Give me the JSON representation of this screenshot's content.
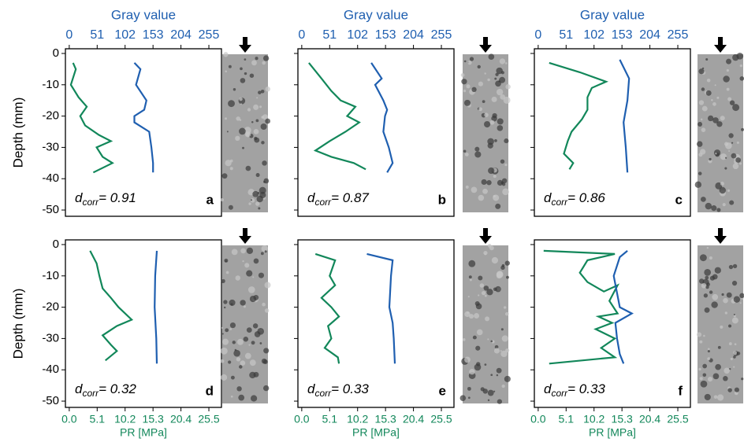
{
  "chart_data": [
    {
      "type": "line",
      "label": "a",
      "annotation": [
        "d",
        "corr",
        "= 0.91"
      ],
      "x2label": "Gray value",
      "ylabel": "Depth (mm)",
      "xlim": [
        -0.7,
        27.8
      ],
      "x2lim": [
        -7,
        278
      ],
      "ylim": [
        -52,
        1.5
      ],
      "x2ticks": [
        0,
        51,
        102,
        153,
        204,
        255
      ],
      "yticks": [
        0,
        -10,
        -20,
        -30,
        -40,
        -50
      ],
      "series": [
        {
          "color": "#12875a",
          "axis": "x",
          "values": [
            0.7,
            1.2,
            0.3,
            1.7,
            3.2,
            2.0,
            2.9,
            5.4,
            7.6,
            5.0,
            6.1,
            7.9,
            4.4
          ],
          "depth": [
            -3,
            -5,
            -10,
            -14,
            -17,
            -20,
            -23,
            -26,
            -28,
            -30,
            -33,
            -35,
            -38
          ]
        },
        {
          "color": "#1f5fb0",
          "axis": "x2",
          "values": [
            119,
            130,
            122,
            141,
            137,
            119,
            119,
            146,
            150,
            153,
            153
          ],
          "depth": [
            -3,
            -5,
            -10,
            -15,
            -18,
            -20,
            -22,
            -25,
            -30,
            -35,
            -38
          ]
        }
      ]
    },
    {
      "type": "line",
      "label": "b",
      "annotation": [
        "d",
        "corr",
        "= 0.87"
      ],
      "x2label": "Gray value",
      "xlim": [
        -0.7,
        27.8
      ],
      "x2lim": [
        -7,
        278
      ],
      "ylim": [
        -52,
        1.5
      ],
      "x2ticks": [
        0,
        51,
        102,
        153,
        204,
        255
      ],
      "yticks": [
        0,
        -10,
        -20,
        -30,
        -40,
        -50
      ],
      "series": [
        {
          "color": "#12875a",
          "axis": "x",
          "values": [
            1.3,
            3.6,
            5.4,
            7.1,
            9.8,
            8.3,
            10.5,
            8.0,
            5.1,
            2.5,
            5.4,
            9.5,
            11.7
          ],
          "depth": [
            -3,
            -8,
            -12,
            -15,
            -17,
            -20,
            -22,
            -25,
            -28,
            -31,
            -33,
            -35,
            -37
          ]
        },
        {
          "color": "#1f5fb0",
          "axis": "x2",
          "values": [
            127,
            146,
            134,
            149,
            156,
            152,
            149,
            159,
            166,
            156
          ],
          "depth": [
            -3,
            -8,
            -10,
            -15,
            -18,
            -20,
            -25,
            -30,
            -35,
            -38
          ]
        }
      ]
    },
    {
      "type": "line",
      "label": "c",
      "annotation": [
        "d",
        "corr",
        "= 0.86"
      ],
      "x2label": "Gray value",
      "xlim": [
        -0.7,
        27.8
      ],
      "x2lim": [
        -7,
        278
      ],
      "ylim": [
        -52,
        1.5
      ],
      "x2ticks": [
        0,
        51,
        102,
        153,
        204,
        255
      ],
      "yticks": [
        0,
        -10,
        -20,
        -30,
        -40,
        -50
      ],
      "series": [
        {
          "color": "#12875a",
          "axis": "x",
          "values": [
            2.0,
            7.6,
            12.4,
            9.8,
            9.0,
            9.0,
            8.0,
            6.1,
            5.4,
            4.7,
            6.4,
            5.7
          ],
          "depth": [
            -3,
            -6,
            -9,
            -11,
            -14,
            -18,
            -21,
            -25,
            -28,
            -32,
            -35,
            -37
          ]
        },
        {
          "color": "#1f5fb0",
          "axis": "x2",
          "values": [
            149,
            166,
            163,
            156,
            160,
            163
          ],
          "depth": [
            -2,
            -8,
            -15,
            -22,
            -30,
            -38
          ]
        }
      ]
    },
    {
      "type": "line",
      "label": "d",
      "annotation": [
        "d",
        "corr",
        "= 0.32"
      ],
      "xlabel": "PR [MPa]",
      "ylabel": "Depth (mm)",
      "xlim": [
        -0.7,
        27.8
      ],
      "x2lim": [
        -7,
        278
      ],
      "ylim": [
        -52,
        1.5
      ],
      "xticks": [
        {
          "value": 0,
          "label": "0.0"
        },
        5.1,
        10.2,
        15.3,
        20.4,
        25.5
      ],
      "yticks": [
        0,
        -10,
        -20,
        -30,
        -40,
        -50
      ],
      "series": [
        {
          "color": "#12875a",
          "axis": "x",
          "values": [
            3.8,
            5.0,
            5.5,
            6.1,
            7.6,
            9.0,
            11.4,
            8.7,
            6.1,
            7.6,
            8.7,
            7.3,
            6.6
          ],
          "depth": [
            -2,
            -6,
            -10,
            -14,
            -17,
            -20,
            -24,
            -26,
            -29,
            -32,
            -34,
            -36,
            -37
          ]
        },
        {
          "color": "#1f5fb0",
          "axis": "x2",
          "values": [
            160,
            157,
            156,
            159,
            160
          ],
          "depth": [
            -2,
            -10,
            -20,
            -30,
            -38
          ]
        }
      ]
    },
    {
      "type": "line",
      "label": "e",
      "annotation": [
        "d",
        "corr",
        "= 0.33"
      ],
      "xlabel": "PR [MPa]",
      "xlim": [
        -0.7,
        27.8
      ],
      "x2lim": [
        -7,
        278
      ],
      "ylim": [
        -52,
        1.5
      ],
      "xticks": [
        {
          "value": 0,
          "label": "0.0"
        },
        5.1,
        10.2,
        15.3,
        20.4,
        25.5
      ],
      "yticks": [
        0,
        -10,
        -20,
        -30,
        -40,
        -50
      ],
      "series": [
        {
          "color": "#12875a",
          "axis": "x",
          "values": [
            2.5,
            6.1,
            5.1,
            6.1,
            3.6,
            5.4,
            6.8,
            4.8,
            5.4,
            4.2,
            6.6,
            6.8
          ],
          "depth": [
            -3,
            -5,
            -10,
            -13,
            -17,
            -20,
            -23,
            -26,
            -30,
            -33,
            -36,
            -38
          ]
        },
        {
          "color": "#1f5fb0",
          "axis": "x2",
          "values": [
            119,
            166,
            163,
            160,
            166,
            168,
            170
          ],
          "depth": [
            -3,
            -5,
            -10,
            -20,
            -25,
            -30,
            -38
          ]
        }
      ]
    },
    {
      "type": "line",
      "label": "f",
      "annotation": [
        "d",
        "corr",
        "= 0.33"
      ],
      "xlabel": "PR [MPa]",
      "xlim": [
        -0.7,
        27.8
      ],
      "x2lim": [
        -7,
        278
      ],
      "ylim": [
        -52,
        1.5
      ],
      "xticks": [
        {
          "value": 0,
          "label": "0.0"
        },
        5.1,
        10.2,
        15.3,
        20.4,
        25.5
      ],
      "yticks": [
        0,
        -10,
        -20,
        -30,
        -40,
        -50
      ],
      "series": [
        {
          "color": "#12875a",
          "axis": "x",
          "values": [
            1.0,
            14.0,
            9.0,
            7.6,
            9.0,
            12.0,
            14.5,
            13.0,
            14.5,
            11.0,
            13.5,
            10.5,
            14.0,
            11.5,
            14.0,
            2.0
          ],
          "depth": [
            -2,
            -3,
            -5,
            -9,
            -12,
            -15,
            -13,
            -18,
            -22,
            -23,
            -25,
            -27,
            -30,
            -33,
            -36,
            -38
          ]
        },
        {
          "color": "#1f5fb0",
          "axis": "x2",
          "values": [
            163,
            149,
            138,
            149,
            171,
            141,
            144,
            149,
            156
          ],
          "depth": [
            -2,
            -4,
            -10,
            -20,
            -22,
            -25,
            -30,
            -35,
            -38
          ]
        }
      ]
    }
  ]
}
